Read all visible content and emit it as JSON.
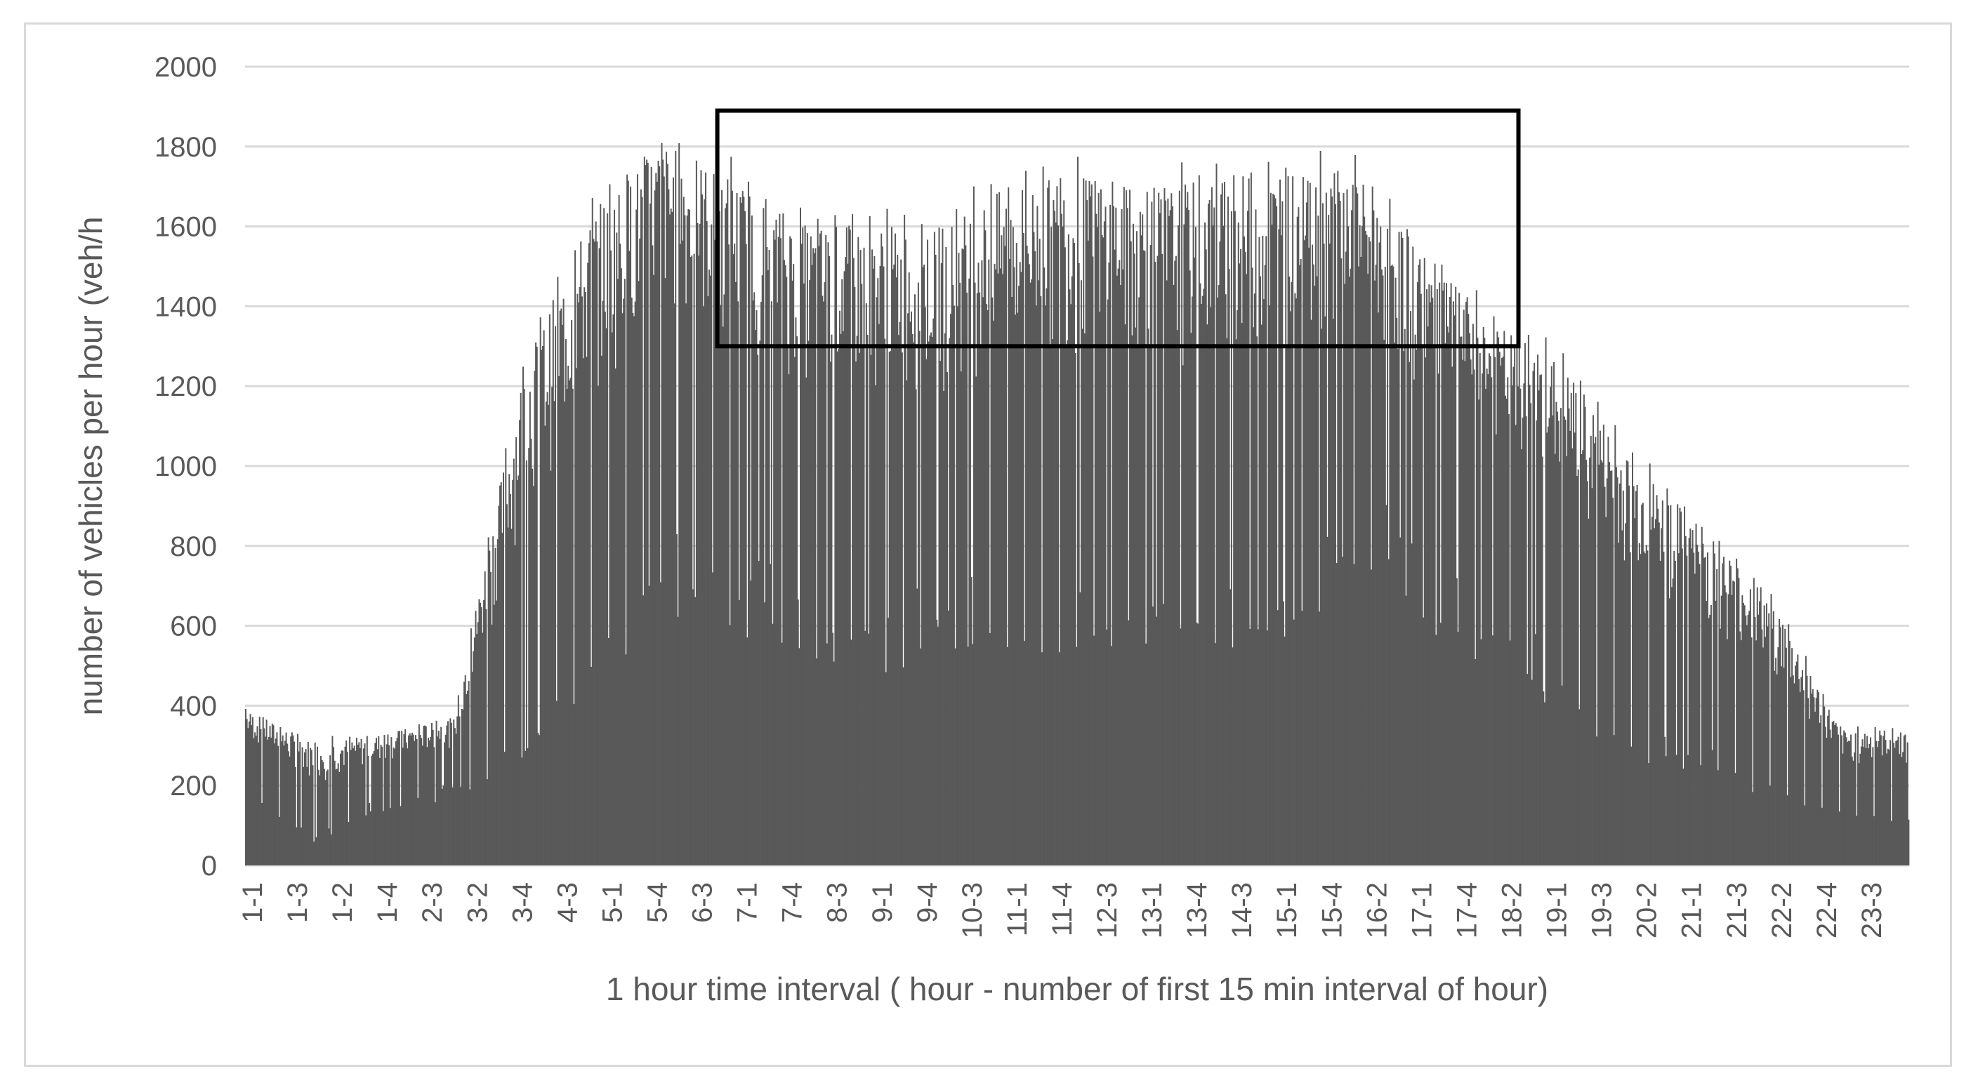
{
  "chart_data": {
    "type": "bar",
    "title": "",
    "xlabel": "1 hour time interval ( hour - number of first 15 min interval of hour)",
    "ylabel": "number of vehicles per hour (veh/h",
    "ylim": [
      0,
      2000
    ],
    "yticks": [
      0,
      200,
      400,
      600,
      800,
      1000,
      1200,
      1400,
      1600,
      1800,
      2000
    ],
    "grid": true,
    "legend": "none",
    "bar_color": "#595959",
    "highlight_box": {
      "x_range": [
        "6-1",
        "18-2"
      ],
      "y_range": [
        1300,
        1890
      ],
      "color": "#000000"
    },
    "x_tick_labels": [
      "1-1",
      "1-3",
      "1-2",
      "1-4",
      "2-3",
      "3-2",
      "3-4",
      "4-3",
      "5-1",
      "5-4",
      "6-3",
      "7-1",
      "7-4",
      "8-3",
      "9-1",
      "9-4",
      "10-3",
      "11-1",
      "11-4",
      "12-3",
      "13-1",
      "13-4",
      "14-3",
      "15-1",
      "15-4",
      "16-2",
      "17-1",
      "17-4",
      "18-2",
      "19-1",
      "19-3",
      "20-2",
      "21-1",
      "21-3",
      "22-2",
      "22-4",
      "23-3"
    ],
    "hours": [
      1,
      2,
      3,
      4,
      5,
      6,
      7,
      8,
      9,
      10,
      11,
      12,
      13,
      14,
      15,
      16,
      17,
      18,
      19,
      20,
      21,
      22,
      23,
      24
    ],
    "hourly_base": [
      210,
      65,
      150,
      190,
      310,
      510,
      740,
      690,
      600,
      560,
      590,
      620,
      610,
      640,
      600,
      630,
      850,
      650,
      580,
      430,
      300,
      260,
      190,
      130
    ],
    "hourly_peak": [
      400,
      320,
      340,
      380,
      1300,
      1700,
      1870,
      1780,
      1660,
      1660,
      1650,
      1760,
      1790,
      1750,
      1780,
      1800,
      1780,
      1580,
      1400,
      1300,
      1050,
      880,
      700,
      350
    ],
    "intervals_per_hour": 60
  }
}
